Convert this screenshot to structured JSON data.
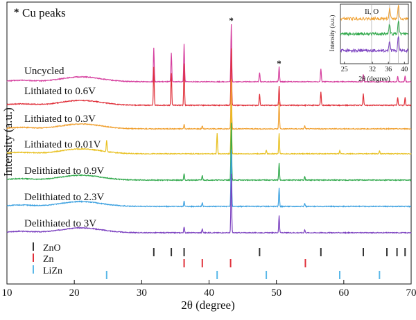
{
  "chart_data": {
    "type": "line",
    "xlabel": "2θ (degree)",
    "ylabel": "Intensity (a.u.)",
    "xlim": [
      10,
      70
    ],
    "xticks": [
      10,
      20,
      30,
      40,
      50,
      60,
      70
    ],
    "cu_legend": "Cu peaks",
    "cu_peaks": [
      43.3,
      50.4
    ],
    "series": [
      {
        "name": "Uncycled",
        "color": "#d6409f",
        "peaks": [
          [
            31.8,
            0.9
          ],
          [
            34.4,
            0.75
          ],
          [
            36.3,
            1.0
          ],
          [
            43.3,
            1.5
          ],
          [
            47.5,
            0.25
          ],
          [
            50.4,
            0.4
          ],
          [
            56.6,
            0.35
          ],
          [
            62.9,
            0.2
          ],
          [
            68.0,
            0.15
          ],
          [
            69.1,
            0.15
          ]
        ]
      },
      {
        "name": "Lithiated to 0.6V",
        "color": "#e0303a",
        "peaks": [
          [
            31.8,
            1.0
          ],
          [
            34.4,
            0.85
          ],
          [
            36.3,
            1.1
          ],
          [
            43.3,
            1.5
          ],
          [
            47.5,
            0.3
          ],
          [
            50.4,
            0.5
          ],
          [
            56.6,
            0.35
          ],
          [
            62.9,
            0.3
          ],
          [
            68.0,
            0.2
          ],
          [
            69.1,
            0.2
          ]
        ]
      },
      {
        "name": "Lithiated to 0.3V",
        "color": "#f0a030",
        "peaks": [
          [
            36.3,
            0.12
          ],
          [
            39.0,
            0.08
          ],
          [
            43.3,
            1.3
          ],
          [
            50.4,
            0.7
          ],
          [
            54.2,
            0.08
          ]
        ]
      },
      {
        "name": "Lithiated to 0.01V",
        "color": "#e8c020",
        "peaks": [
          [
            24.8,
            0.3
          ],
          [
            41.2,
            0.55
          ],
          [
            43.3,
            1.3
          ],
          [
            48.5,
            0.1
          ],
          [
            50.4,
            0.55
          ],
          [
            59.4,
            0.08
          ],
          [
            65.3,
            0.08
          ]
        ]
      },
      {
        "name": "Delithiated to 0.9V",
        "color": "#2fa84a",
        "peaks": [
          [
            36.3,
            0.18
          ],
          [
            39.0,
            0.12
          ],
          [
            43.3,
            1.5
          ],
          [
            50.4,
            0.45
          ],
          [
            54.2,
            0.1
          ]
        ]
      },
      {
        "name": "Delithiated to 2.3V",
        "color": "#3aa0e0",
        "peaks": [
          [
            36.3,
            0.15
          ],
          [
            39.0,
            0.1
          ],
          [
            43.3,
            1.5
          ],
          [
            50.4,
            0.5
          ],
          [
            54.2,
            0.08
          ]
        ]
      },
      {
        "name": "Delithiated to  3V",
        "color": "#7a3fbf",
        "peaks": [
          [
            36.3,
            0.15
          ],
          [
            39.0,
            0.1
          ],
          [
            43.3,
            1.55
          ],
          [
            50.4,
            0.45
          ],
          [
            54.2,
            0.08
          ]
        ]
      }
    ],
    "references": [
      {
        "name": "ZnO",
        "color": "#333333",
        "positions": [
          31.8,
          34.4,
          36.3,
          47.5,
          56.6,
          62.9,
          66.4,
          67.9,
          69.1
        ]
      },
      {
        "name": "Zn",
        "color": "#e0303a",
        "positions": [
          36.3,
          39.0,
          43.2,
          54.3
        ]
      },
      {
        "name": "LiZn",
        "color": "#5ab8e8",
        "positions": [
          24.8,
          41.2,
          48.5,
          59.4,
          65.3
        ]
      }
    ],
    "inset": {
      "xlabel": "2θ (degree)",
      "ylabel": "Intensity (a.u.)",
      "note": "Ii, O",
      "xlim": [
        24,
        41
      ],
      "xticks": [
        25,
        32,
        36,
        40
      ],
      "series_colors": [
        "#f0a030",
        "#2fa84a",
        "#7a3fbf"
      ]
    }
  }
}
